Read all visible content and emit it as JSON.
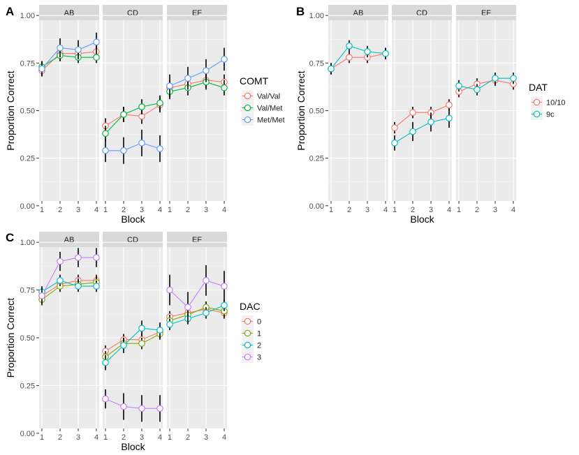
{
  "figure": {
    "panel_labels": [
      "A",
      "B",
      "C"
    ],
    "y_ticks": [
      "0.00",
      "0.25",
      "0.50",
      "0.75",
      "1.00"
    ],
    "x_ticks": [
      "1",
      "2",
      "3",
      "4"
    ],
    "xlabel": "Block",
    "ylabel": "Proportion Correct"
  },
  "chart_data": [
    {
      "panel": "A",
      "type": "line",
      "facets": [
        "AB",
        "CD",
        "EF"
      ],
      "x": [
        1,
        2,
        3,
        4
      ],
      "ylim": [
        0,
        1
      ],
      "xlabel": "Block",
      "ylabel": "Proportion Correct",
      "legend_title": "COMT",
      "series": [
        {
          "name": "Val/Val",
          "color": "#F8766D",
          "values": [
            [
              0.71,
              0.8,
              0.8,
              0.81
            ],
            [
              0.42,
              0.48,
              0.47,
              0.53
            ],
            [
              0.62,
              0.64,
              0.66,
              0.65
            ]
          ],
          "errors": [
            [
              0.03,
              0.04,
              0.04,
              0.04
            ],
            [
              0.04,
              0.04,
              0.04,
              0.04
            ],
            [
              0.04,
              0.04,
              0.04,
              0.04
            ]
          ]
        },
        {
          "name": "Val/Met",
          "color": "#00BA38",
          "values": [
            [
              0.73,
              0.79,
              0.78,
              0.78
            ],
            [
              0.38,
              0.48,
              0.52,
              0.54
            ],
            [
              0.6,
              0.62,
              0.65,
              0.62
            ]
          ],
          "errors": [
            [
              0.03,
              0.03,
              0.03,
              0.03
            ],
            [
              0.04,
              0.04,
              0.04,
              0.04
            ],
            [
              0.04,
              0.04,
              0.04,
              0.04
            ]
          ]
        },
        {
          "name": "Met/Met",
          "color": "#619CFF",
          "values": [
            [
              0.72,
              0.83,
              0.82,
              0.86
            ],
            [
              0.29,
              0.29,
              0.33,
              0.3
            ],
            [
              0.63,
              0.67,
              0.71,
              0.77
            ]
          ],
          "errors": [
            [
              0.04,
              0.05,
              0.05,
              0.05
            ],
            [
              0.06,
              0.07,
              0.07,
              0.07
            ],
            [
              0.06,
              0.06,
              0.06,
              0.06
            ]
          ]
        }
      ]
    },
    {
      "panel": "B",
      "type": "line",
      "facets": [
        "AB",
        "CD",
        "EF"
      ],
      "x": [
        1,
        2,
        3,
        4
      ],
      "ylim": [
        0,
        1
      ],
      "xlabel": "Block",
      "ylabel": "Proportion Correct",
      "legend_title": "DAT",
      "series": [
        {
          "name": "10/10",
          "color": "#F8766D",
          "values": [
            [
              0.72,
              0.78,
              0.78,
              0.8
            ],
            [
              0.41,
              0.49,
              0.49,
              0.53
            ],
            [
              0.6,
              0.64,
              0.66,
              0.64
            ]
          ],
          "errors": [
            [
              0.03,
              0.03,
              0.03,
              0.03
            ],
            [
              0.03,
              0.03,
              0.03,
              0.03
            ],
            [
              0.03,
              0.03,
              0.03,
              0.03
            ]
          ]
        },
        {
          "name": "9c",
          "color": "#00BFC4",
          "values": [
            [
              0.72,
              0.84,
              0.81,
              0.8
            ],
            [
              0.33,
              0.39,
              0.44,
              0.46
            ],
            [
              0.63,
              0.61,
              0.67,
              0.67
            ]
          ],
          "errors": [
            [
              0.03,
              0.03,
              0.03,
              0.03
            ],
            [
              0.04,
              0.05,
              0.05,
              0.05
            ],
            [
              0.03,
              0.03,
              0.03,
              0.03
            ]
          ]
        }
      ]
    },
    {
      "panel": "C",
      "type": "line",
      "facets": [
        "AB",
        "CD",
        "EF"
      ],
      "x": [
        1,
        2,
        3,
        4
      ],
      "ylim": [
        0,
        1
      ],
      "xlabel": "Block",
      "ylabel": "Proportion Correct",
      "legend_title": "DAC",
      "series": [
        {
          "name": "0",
          "color": "#F8766D",
          "values": [
            [
              0.72,
              0.78,
              0.8,
              0.8
            ],
            [
              0.43,
              0.49,
              0.49,
              0.53
            ],
            [
              0.61,
              0.63,
              0.65,
              0.63
            ]
          ],
          "errors": [
            [
              0.03,
              0.03,
              0.03,
              0.03
            ],
            [
              0.03,
              0.03,
              0.03,
              0.03
            ],
            [
              0.03,
              0.03,
              0.03,
              0.03
            ]
          ]
        },
        {
          "name": "1",
          "color": "#7CAE00",
          "values": [
            [
              0.7,
              0.77,
              0.78,
              0.79
            ],
            [
              0.4,
              0.47,
              0.47,
              0.52
            ],
            [
              0.59,
              0.62,
              0.66,
              0.64
            ]
          ],
          "errors": [
            [
              0.03,
              0.03,
              0.03,
              0.03
            ],
            [
              0.03,
              0.03,
              0.03,
              0.03
            ],
            [
              0.03,
              0.03,
              0.03,
              0.03
            ]
          ]
        },
        {
          "name": "2",
          "color": "#00BFC4",
          "values": [
            [
              0.74,
              0.8,
              0.77,
              0.77
            ],
            [
              0.37,
              0.46,
              0.55,
              0.54
            ],
            [
              0.57,
              0.6,
              0.63,
              0.67
            ]
          ],
          "errors": [
            [
              0.03,
              0.03,
              0.03,
              0.03
            ],
            [
              0.04,
              0.04,
              0.04,
              0.04
            ],
            [
              0.03,
              0.03,
              0.03,
              0.03
            ]
          ]
        },
        {
          "name": "3",
          "color": "#C77CFF",
          "values": [
            [
              0.72,
              0.9,
              0.92,
              0.92
            ],
            [
              0.18,
              0.14,
              0.13,
              0.13
            ],
            [
              0.75,
              0.66,
              0.8,
              0.77
            ]
          ],
          "errors": [
            [
              0.04,
              0.05,
              0.05,
              0.05
            ],
            [
              0.05,
              0.07,
              0.07,
              0.07
            ],
            [
              0.08,
              0.08,
              0.08,
              0.08
            ]
          ]
        }
      ]
    }
  ]
}
